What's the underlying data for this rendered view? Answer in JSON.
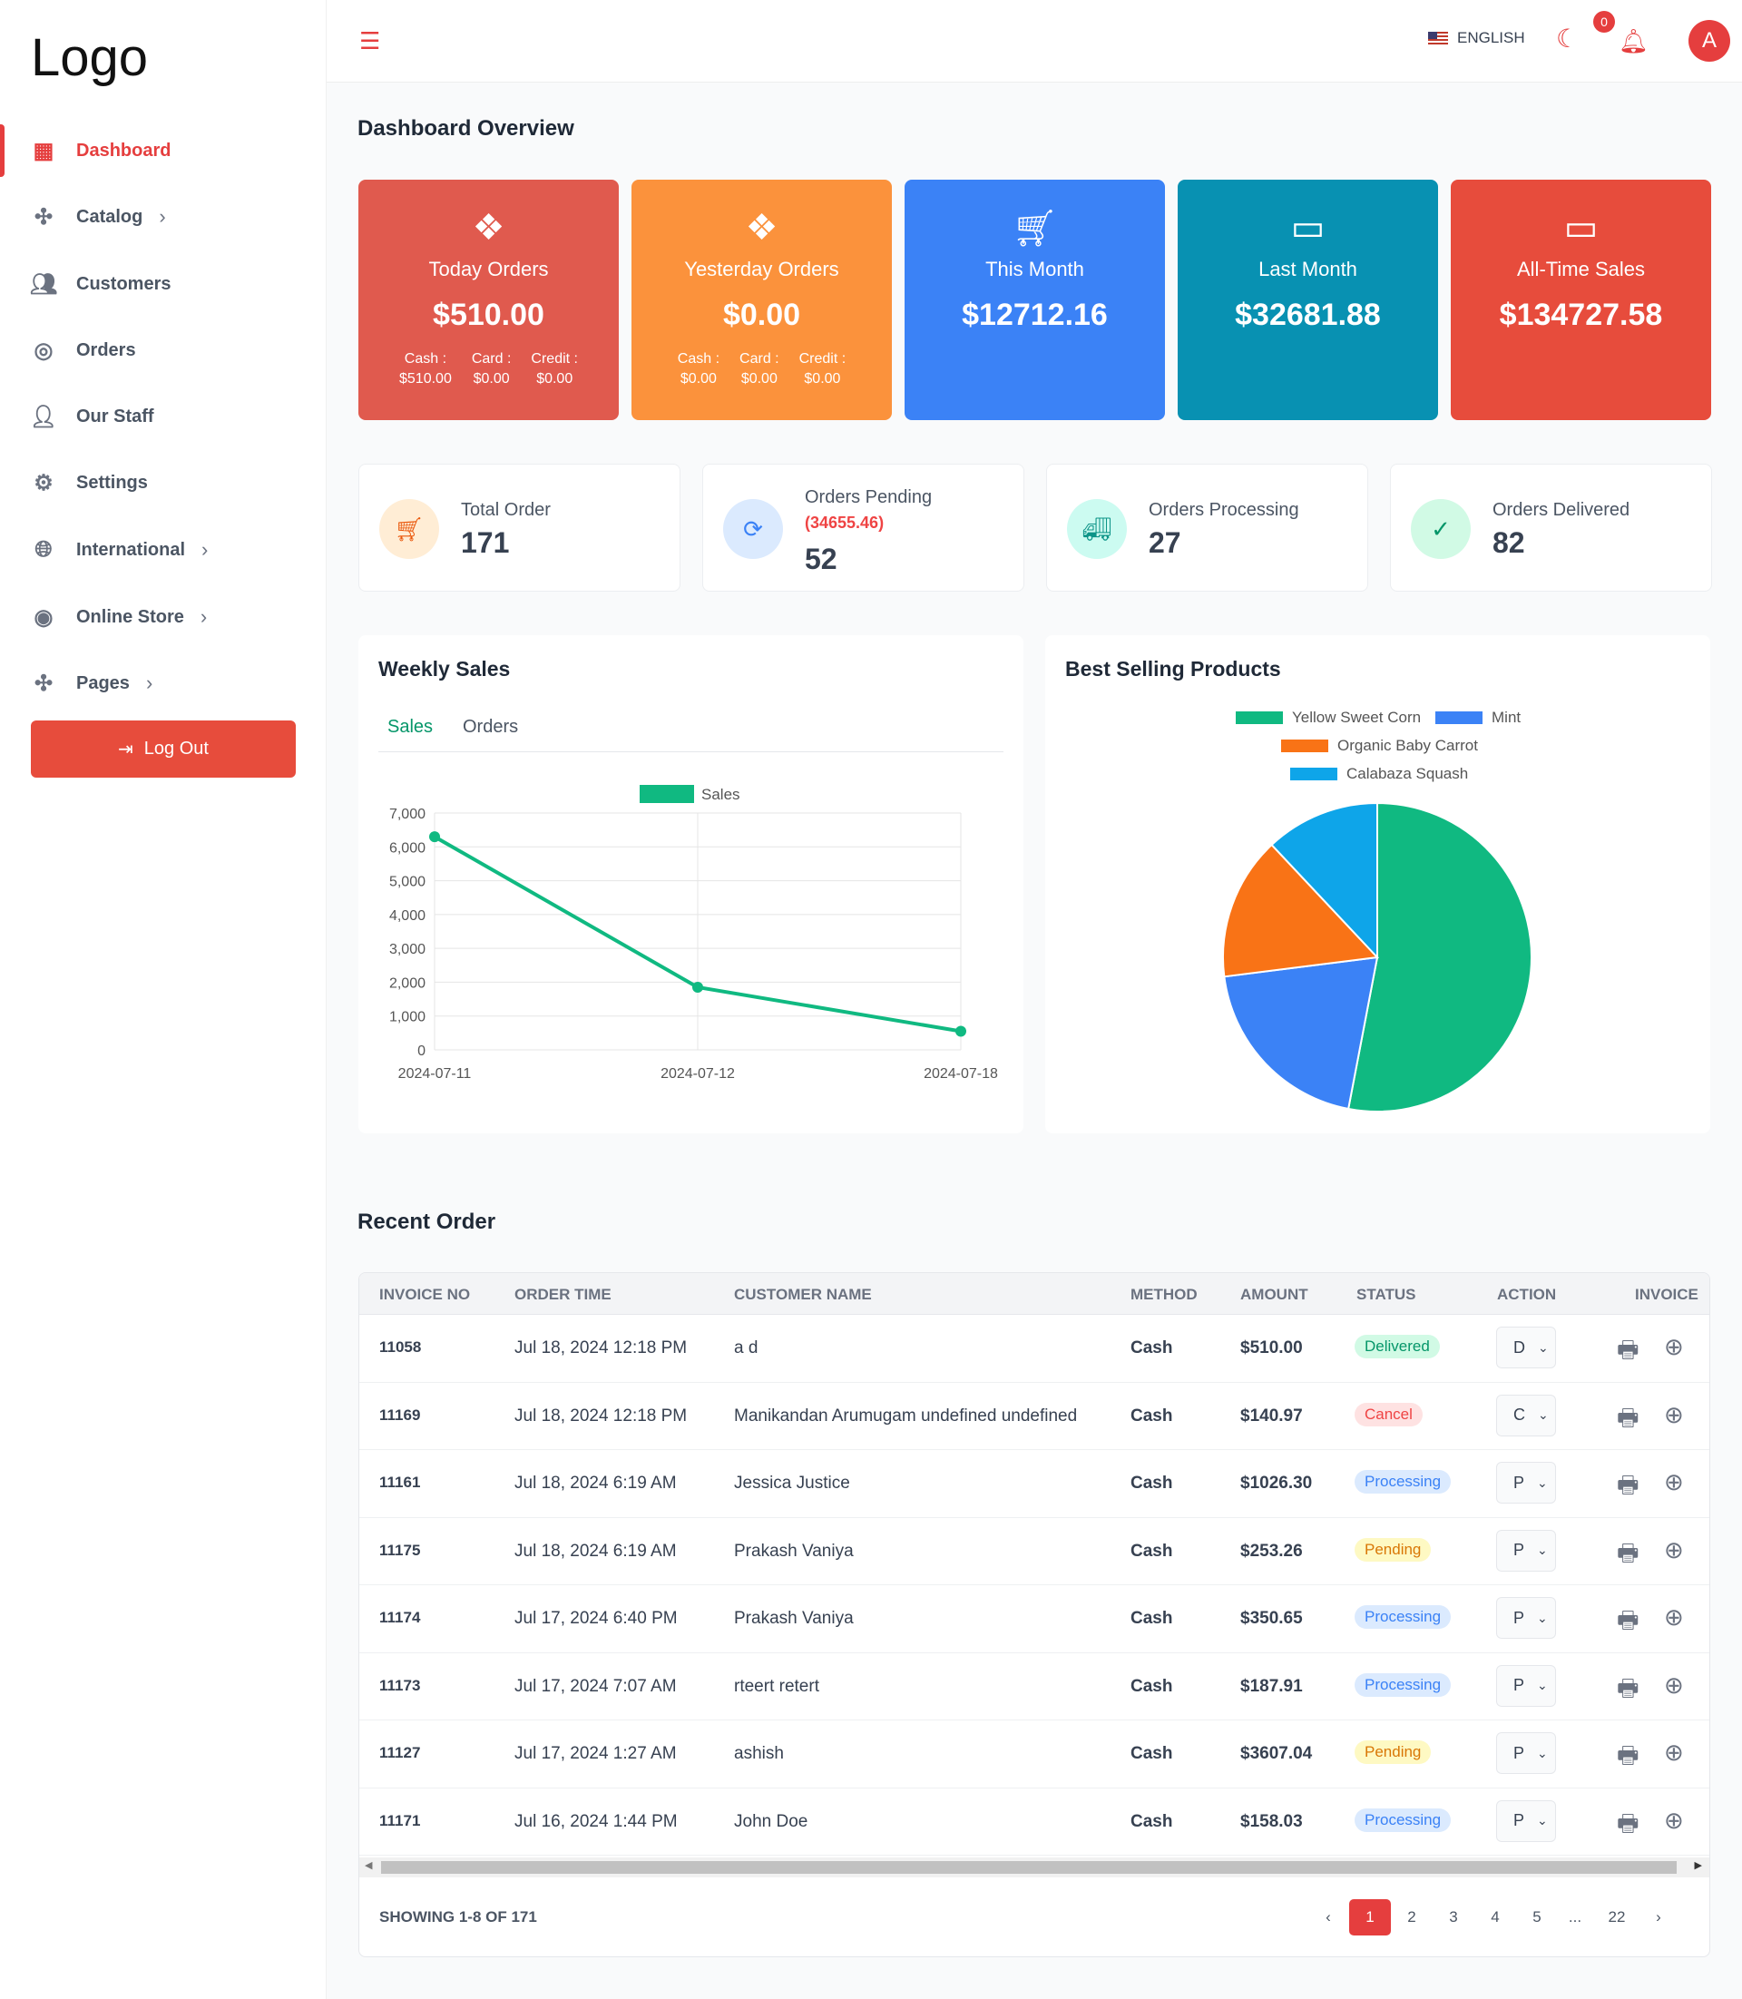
{
  "sidebar": {
    "logo": "Logo",
    "items": [
      {
        "label": "Dashboard",
        "icon": "grid-icon",
        "chev": false
      },
      {
        "label": "Catalog",
        "icon": "slack-icon",
        "chev": true
      },
      {
        "label": "Customers",
        "icon": "users-icon",
        "chev": false
      },
      {
        "label": "Orders",
        "icon": "compass-icon",
        "chev": false
      },
      {
        "label": "Our Staff",
        "icon": "user-icon",
        "chev": false
      },
      {
        "label": "Settings",
        "icon": "gear-icon",
        "chev": false
      },
      {
        "label": "International",
        "icon": "globe-icon",
        "chev": true
      },
      {
        "label": "Online Store",
        "icon": "target-icon",
        "chev": true
      },
      {
        "label": "Pages",
        "icon": "slack-icon",
        "chev": true
      }
    ],
    "logout": "Log Out"
  },
  "header": {
    "language": "ENGLISH",
    "notifications": "0",
    "avatar": "A"
  },
  "overview": {
    "title": "Dashboard Overview",
    "cards": [
      {
        "title": "Today Orders",
        "value": "$510.00",
        "color": "#e05a4e",
        "subs": [
          [
            "Cash :",
            "$510.00"
          ],
          [
            "Card :",
            "$0.00"
          ],
          [
            "Credit :",
            "$0.00"
          ]
        ]
      },
      {
        "title": "Yesterday Orders",
        "value": "$0.00",
        "color": "#fb923c",
        "subs": [
          [
            "Cash :",
            "$0.00"
          ],
          [
            "Card :",
            "$0.00"
          ],
          [
            "Credit :",
            "$0.00"
          ]
        ]
      },
      {
        "title": "This Month",
        "value": "$12712.16",
        "color": "#3b82f6"
      },
      {
        "title": "Last Month",
        "value": "$32681.88",
        "color": "#0891b2"
      },
      {
        "title": "All-Time Sales",
        "value": "$134727.58",
        "color": "#e74c3c"
      }
    ],
    "stats": [
      {
        "label": "Total Order",
        "value": "171"
      },
      {
        "label": "Orders Pending",
        "extra": "(34655.46)",
        "value": "52"
      },
      {
        "label": "Orders Processing",
        "value": "27"
      },
      {
        "label": "Orders Delivered",
        "value": "82"
      }
    ]
  },
  "chart_data": [
    {
      "type": "line",
      "title": "Weekly Sales",
      "tabs": [
        "Sales",
        "Orders"
      ],
      "legend": "Sales",
      "x": [
        "2024-07-11",
        "2024-07-12",
        "2024-07-18"
      ],
      "series": [
        {
          "name": "Sales",
          "values": [
            6300,
            1850,
            550
          ]
        }
      ],
      "ylim": [
        0,
        7000
      ],
      "yticks": [
        "0",
        "1,000",
        "2,000",
        "3,000",
        "4,000",
        "5,000",
        "6,000",
        "7,000"
      ],
      "color": "#10b981"
    },
    {
      "type": "pie",
      "title": "Best Selling Products",
      "labels": [
        "Yellow Sweet Corn",
        "Mint",
        "Organic Baby Carrot",
        "Calabaza Squash"
      ],
      "values": [
        53,
        20,
        15,
        12
      ],
      "colors": [
        "#10b981",
        "#3b82f6",
        "#f97316",
        "#0ea5e9"
      ]
    }
  ],
  "orders": {
    "title": "Recent Order",
    "headers": [
      "INVOICE NO",
      "ORDER TIME",
      "CUSTOMER NAME",
      "METHOD",
      "AMOUNT",
      "STATUS",
      "ACTION",
      "INVOICE"
    ],
    "rows": [
      {
        "inv": "11058",
        "time": "Jul 18, 2024 12:18 PM",
        "name": "a d",
        "method": "Cash",
        "amount": "$510.00",
        "status": "Delivered",
        "action": "D"
      },
      {
        "inv": "11169",
        "time": "Jul 18, 2024 12:18 PM",
        "name": "Manikandan Arumugam undefined undefined",
        "method": "Cash",
        "amount": "$140.97",
        "status": "Cancel",
        "action": "C"
      },
      {
        "inv": "11161",
        "time": "Jul 18, 2024 6:19 AM",
        "name": "Jessica Justice",
        "method": "Cash",
        "amount": "$1026.30",
        "status": "Processing",
        "action": "P"
      },
      {
        "inv": "11175",
        "time": "Jul 18, 2024 6:19 AM",
        "name": "Prakash Vaniya",
        "method": "Cash",
        "amount": "$253.26",
        "status": "Pending",
        "action": "P"
      },
      {
        "inv": "11174",
        "time": "Jul 17, 2024 6:40 PM",
        "name": "Prakash Vaniya",
        "method": "Cash",
        "amount": "$350.65",
        "status": "Processing",
        "action": "P"
      },
      {
        "inv": "11173",
        "time": "Jul 17, 2024 7:07 AM",
        "name": "rteert retert",
        "method": "Cash",
        "amount": "$187.91",
        "status": "Processing",
        "action": "P"
      },
      {
        "inv": "11127",
        "time": "Jul 17, 2024 1:27 AM",
        "name": "ashish",
        "method": "Cash",
        "amount": "$3607.04",
        "status": "Pending",
        "action": "P"
      },
      {
        "inv": "11171",
        "time": "Jul 16, 2024 1:44 PM",
        "name": "John Doe",
        "method": "Cash",
        "amount": "$158.03",
        "status": "Processing",
        "action": "P"
      }
    ],
    "showing": "SHOWING 1-8 OF 171",
    "pages": [
      "‹",
      "1",
      "2",
      "3",
      "4",
      "5",
      "...",
      "22",
      "›"
    ],
    "current_page": "1"
  }
}
